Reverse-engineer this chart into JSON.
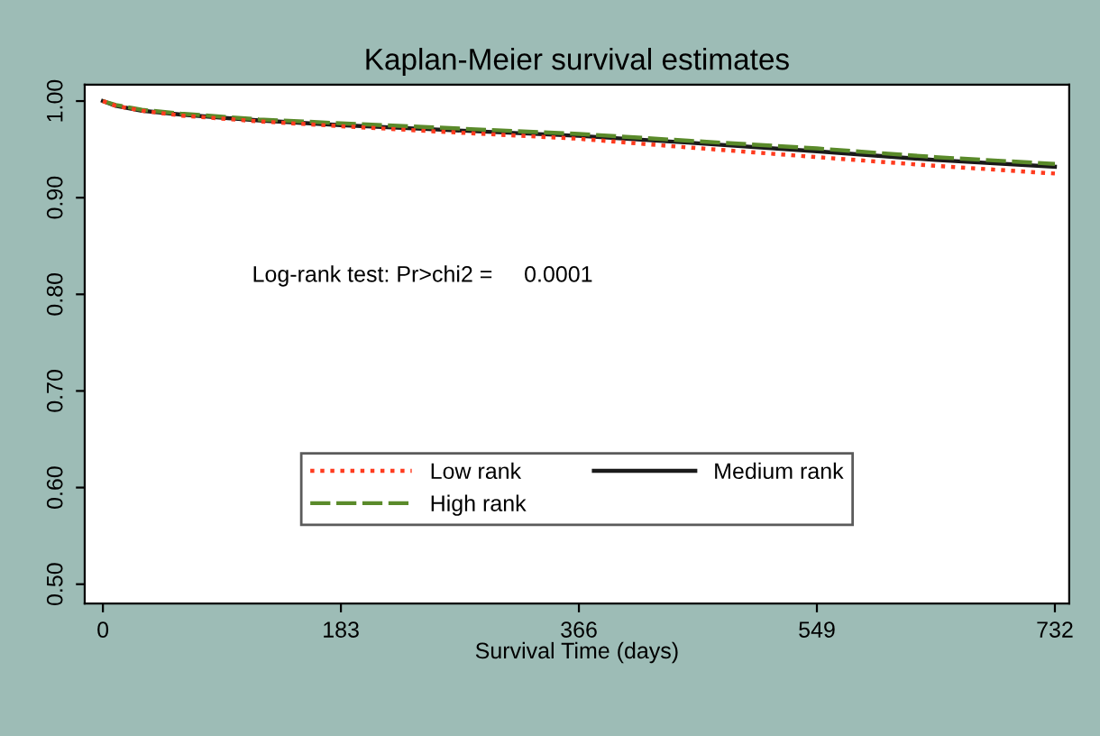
{
  "chart_data": {
    "type": "line",
    "title": "Kaplan-Meier survival estimates",
    "xlabel": "Survival Time (days)",
    "annotations": [
      "Log-rank test: Pr>chi2 =     0.0001"
    ],
    "xlim": [
      -14,
      743
    ],
    "ylim": [
      0.48,
      1.017
    ],
    "xticks": [
      0,
      183,
      366,
      549,
      732
    ],
    "yticks": [
      {
        "value": 0.5,
        "label": "0.50"
      },
      {
        "value": 0.6,
        "label": "0.60"
      },
      {
        "value": 0.7,
        "label": "0.70"
      },
      {
        "value": 0.8,
        "label": "0.80"
      },
      {
        "value": 0.9,
        "label": "0.90"
      },
      {
        "value": 1.0,
        "label": "1.00"
      }
    ],
    "grid": false,
    "legend": "bottom",
    "x": [
      0,
      10,
      30,
      60,
      120,
      183,
      250,
      366,
      450,
      549,
      640,
      732
    ],
    "series": [
      {
        "name": "Low rank",
        "color": "#ff3b1f",
        "line_style": "dotted",
        "values": [
          1.0,
          0.995,
          0.99,
          0.985,
          0.979,
          0.974,
          0.969,
          0.961,
          0.952,
          0.942,
          0.933,
          0.925
        ]
      },
      {
        "name": "Medium rank",
        "color": "#1a1a1a",
        "line_style": "solid",
        "values": [
          1.0,
          0.995,
          0.99,
          0.986,
          0.98,
          0.975,
          0.971,
          0.964,
          0.957,
          0.948,
          0.939,
          0.932
        ]
      },
      {
        "name": "High rank",
        "color": "#5a8a2a",
        "line_style": "dashed",
        "values": [
          1.0,
          0.996,
          0.991,
          0.987,
          0.981,
          0.977,
          0.973,
          0.966,
          0.959,
          0.951,
          0.942,
          0.935
        ]
      }
    ]
  }
}
